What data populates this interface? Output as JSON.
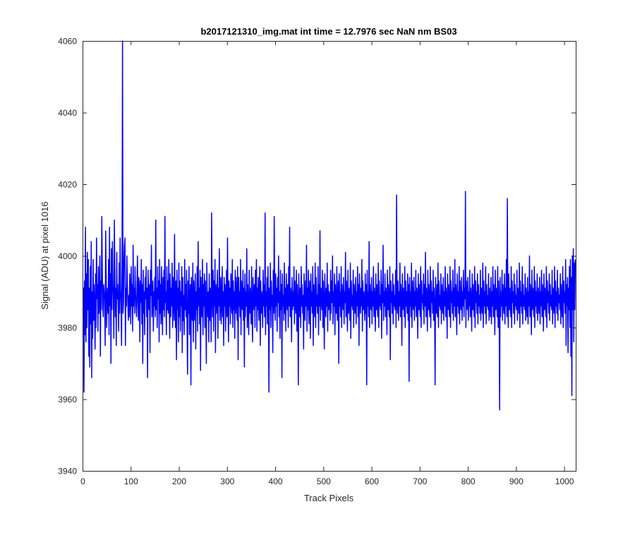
{
  "chart_data": {
    "type": "line",
    "title": "b2017121310_img.mat int time = 12.7976 sec  NaN nm BS03",
    "xlabel": "Track Pixels",
    "ylabel": "Signal (ADU) at pixel 1016",
    "xlim": [
      0,
      1024
    ],
    "ylim": [
      3940,
      4060
    ],
    "xticks": [
      0,
      100,
      200,
      300,
      400,
      500,
      600,
      700,
      800,
      900,
      1000
    ],
    "yticks": [
      3940,
      3960,
      3980,
      4000,
      4020,
      4040,
      4060
    ],
    "grid": false,
    "legend": "none",
    "series": [
      {
        "color": "#0000ff",
        "x_start": 1,
        "x_step": 1,
        "values": [
          3985,
          3991,
          3962,
          3993,
          3978,
          4008,
          3976,
          3995,
          3980,
          4001,
          3985,
          3999,
          3972,
          3991,
          3969,
          3997,
          3981,
          4004,
          3966,
          3990,
          3977,
          3999,
          3982,
          3992,
          3986,
          3974,
          3995,
          3980,
          4005,
          3988,
          3992,
          3979,
          3997,
          3984,
          3989,
          4000,
          3972,
          3993,
          3985,
          4011,
          3996,
          3986,
          3983,
          3992,
          3990,
          3988,
          3975,
          4007,
          3995,
          3980,
          3988,
          3991,
          3984,
          3999,
          3978,
          4008,
          3986,
          3995,
          3970,
          4002,
          3985,
          4004,
          3992,
          3988,
          3977,
          4010,
          3996,
          3983,
          3991,
          3975,
          4001,
          3988,
          3992,
          3986,
          3979,
          3998,
          3984,
          4005,
          3991,
          3986,
          3975,
          3998,
          4060,
          3984,
          3987,
          3999,
          4003,
          4005,
          3975,
          3991,
          3986,
          4000,
          3992,
          3987,
          3982,
          3989,
          3983,
          3995,
          3990,
          3981,
          3997,
          3986,
          3992,
          3979,
          4003,
          3986,
          3991,
          3984,
          3997,
          3990,
          3986,
          3983,
          3991,
          4000,
          3987,
          3982,
          3994,
          3990,
          3976,
          3993,
          3987,
          3999,
          3981,
          3992,
          3970,
          3996,
          3984,
          3990,
          3978,
          3994,
          3988,
          3997,
          3983,
          3991,
          3966,
          3996,
          3989,
          3985,
          3992,
          3973,
          3996,
          3989,
          4003,
          3983,
          3987,
          3993,
          3979,
          3990,
          3986,
          3994,
          3983,
          4010,
          3985,
          3991,
          3980,
          3997,
          3988,
          3993,
          3976,
          3999,
          3984,
          3992,
          3981,
          3997,
          3988,
          3978,
          3994,
          3985,
          3996,
          3983,
          4011,
          3987,
          3990,
          3978,
          3997,
          3985,
          3993,
          3984,
          3999,
          3988,
          3977,
          3995,
          3983,
          3991,
          3986,
          3998,
          3980,
          3994,
          3989,
          3982,
          4006,
          3987,
          3980,
          3993,
          3971,
          3996,
          3985,
          3991,
          3976,
          3998,
          3983,
          3993,
          3979,
          3990,
          3986,
          3997,
          3973,
          3994,
          3982,
          3989,
          3978,
          3999,
          3985,
          3992,
          3983,
          3996,
          3980,
          3967,
          3993,
          3984,
          3997,
          3978,
          3987,
          3992,
          3964,
          3994,
          3986,
          3982,
          3998,
          3976,
          3993,
          3982,
          3986,
          3995,
          3974,
          3990,
          3985,
          3997,
          3979,
          4004,
          3986,
          3991,
          3981,
          3996,
          3968,
          3994,
          3987,
          3983,
          3999,
          3978,
          3992,
          3986,
          3995,
          3980,
          3993,
          3984,
          3970,
          3998,
          3987,
          3983,
          3990,
          3976,
          3995,
          3982,
          3991,
          3987,
          3976,
          4012,
          3990,
          3983,
          3996,
          3979,
          3993,
          3986,
          3999,
          3973,
          3992,
          3984,
          3988,
          3996,
          3977,
          3991,
          3986,
          4002,
          3982,
          3989,
          3994,
          3981,
          3987,
          3997,
          3983,
          3990,
          3975,
          3994,
          3986,
          3992,
          3979,
          3988,
          3996,
          3983,
          4005,
          3987,
          3976,
          3993,
          3986,
          3991,
          3981,
          3995,
          3988,
          3984,
          3999,
          3980,
          3993,
          3985,
          3990,
          3977,
          3996,
          3984,
          3994,
          3988,
          3982,
          3997,
          3971,
          3994,
          3986,
          3990,
          3983,
          3999,
          3978,
          3993,
          3987,
          3985,
          3996,
          3982,
          3991,
          3969,
          3995,
          3983,
          3990,
          3986,
          4002,
          3980,
          3992,
          3987,
          3978,
          3996,
          3984,
          3991,
          3988,
          3981,
          3997,
          3983,
          3976,
          3994,
          3989,
          3985,
          3992,
          3980,
          3996,
          3986,
          3999,
          3979,
          3991,
          3985,
          3994,
          3982,
          3988,
          3997,
          3975,
          3993,
          3984,
          3990,
          3987,
          3980,
          3996,
          3986,
          3992,
          3983,
          4012,
          3978,
          3990,
          3986,
          3994,
          3981,
          3997,
          3987,
          3962,
          3991,
          3985,
          3998,
          3980,
          3993,
          3986,
          3989,
          3973,
          3996,
          3984,
          4011,
          3988,
          3982,
          3995,
          3986,
          3991,
          3979,
          3994,
          3987,
          4000,
          3983,
          3990,
          3977,
          3996,
          3985,
          3992,
          3966,
          3995,
          3986,
          3989,
          3982,
          3998,
          3984,
          3991,
          3979,
          3995,
          3988,
          3985,
          3992,
          3980,
          3997,
          3986,
          4008,
          3983,
          3991,
          3989,
          3976,
          3994,
          3985,
          3990,
          3986,
          3997,
          3981,
          3993,
          3987,
          3984,
          3996,
          3979,
          3992,
          3986,
          3964,
          3995,
          3988,
          3983,
          3991,
          3980,
          3997,
          3986,
          3992,
          3984,
          3989,
          3974,
          3995,
          3987,
          3982,
          3993,
          3986,
          4003,
          3979,
          3991,
          3985,
          3996,
          3981,
          3988,
          3993,
          3977,
          3995,
          3986,
          3990,
          3984,
          3997,
          3975,
          3992,
          3987,
          3983,
          3998,
          3980,
          3994,
          3986,
          3989,
          3984,
          3997,
          3978,
          3992,
          3986,
          4007,
          3982,
          3991,
          3988,
          3985,
          3996,
          3980,
          3993,
          3986,
          3974,
          3995,
          3987,
          3983,
          3991,
          3986,
          3998,
          3979,
          3992,
          3985,
          3990,
          3987,
          3982,
          3996,
          3984,
          3993,
          3987,
          4000,
          3981,
          3990,
          3986,
          3995,
          3978,
          3992,
          3987,
          3984,
          3997,
          3982,
          3989,
          3993,
          3970,
          3995,
          3986,
          3990,
          3983,
          3997,
          3980,
          3992,
          3988,
          3985,
          3994,
          3981,
          3990,
          3987,
          4001,
          3983,
          3993,
          3986,
          3979,
          3996,
          3984,
          3991,
          3987,
          3982,
          3998,
          3977,
          3993,
          3986,
          3989,
          3985,
          3996,
          3980,
          3992,
          3987,
          3984,
          3994,
          3981,
          3990,
          3986,
          3997,
          3983,
          3992,
          3975,
          3995,
          3988,
          3984,
          3991,
          3986,
          3999,
          3979,
          3993,
          3985,
          3990,
          3987,
          3982,
          3995,
          3984,
          3992,
          3964,
          3996,
          3986,
          3990,
          3983,
          4004,
          3980,
          3992,
          3987,
          3985,
          3994,
          3981,
          3990,
          3986,
          3997,
          3983,
          3991,
          3988,
          3979,
          3995,
          3985,
          3992,
          3986,
          3983,
          3998,
          3980,
          3993,
          3986,
          3989,
          3985,
          3996,
          3977,
          3992,
          3987,
          4003,
          3982,
          3990,
          3986,
          3995,
          3983,
          3991,
          3988,
          3978,
          3996,
          3985,
          3992,
          3986,
          3983,
          3997,
          3971,
          3993,
          3987,
          3990,
          3984,
          3995,
          3981,
          3992,
          3986,
          3989,
          3985,
          3996,
          3980,
          4017,
          3987,
          3984,
          3993,
          3982,
          3990,
          3986,
          3998,
          3983,
          3992,
          3988,
          3975,
          3995,
          3985,
          3991,
          3987,
          3983,
          3997,
          3980,
          3993,
          3986,
          3990,
          3984,
          3995,
          3982,
          3992,
          3965,
          3994,
          3986,
          3990,
          3983,
          3998,
          3980,
          3993,
          3987,
          3985,
          3994,
          3982,
          3990,
          3986,
          3996,
          3983,
          3991,
          3988,
          3977,
          3995,
          3985,
          3992,
          3986,
          3983,
          3997,
          3980,
          3993,
          3987,
          3989,
          3985,
          3995,
          3981,
          3992,
          3986,
          4001,
          3983,
          3991,
          3988,
          3979,
          3996,
          3985,
          3992,
          3986,
          3983,
          3997,
          3980,
          3993,
          3987,
          3990,
          3984,
          3996,
          3982,
          3991,
          3986,
          3964,
          3994,
          3987,
          3984,
          3992,
          3983,
          3998,
          3980,
          3993,
          3986,
          3989,
          3985,
          3995,
          3981,
          3992,
          3987,
          3984,
          3994,
          3982,
          3990,
          3986,
          3997,
          3983,
          3991,
          3988,
          3977,
          3995,
          3985,
          3992,
          3986,
          3983,
          3997,
          3980,
          3993,
          3987,
          3990,
          3984,
          3996,
          3982,
          3991,
          3986,
          3999,
          3983,
          3992,
          3988,
          3978,
          3995,
          3986,
          3990,
          3984,
          3997,
          3981,
          3993,
          3987,
          3985,
          3994,
          3982,
          3990,
          3986,
          3996,
          3983,
          3991,
          3988,
          4018,
          3980,
          3993,
          3987,
          3985,
          3994,
          3982,
          3990,
          3986,
          3996,
          3983,
          3991,
          3988,
          3979,
          3995,
          3985,
          3992,
          3986,
          3983,
          3997,
          3980,
          3993,
          3987,
          3990,
          3984,
          3995,
          3981,
          3992,
          3986,
          3989,
          3984,
          3996,
          3982,
          3991,
          3987,
          3984,
          3998,
          3980,
          3993,
          3986,
          3990,
          3984,
          3997,
          3981,
          3992,
          3986,
          3989,
          3985,
          3995,
          3982,
          3991,
          3987,
          3983,
          3994,
          3981,
          3990,
          3986,
          3997,
          3983,
          3992,
          3988,
          3978,
          3996,
          3985,
          3991,
          3987,
          3983,
          3997,
          3980,
          3993,
          3986,
          3957,
          3994,
          3983,
          3990,
          3986,
          3996,
          3982,
          3992,
          3987,
          3984,
          3995,
          3981,
          3991,
          3986,
          3999,
          3983,
          4016,
          3987,
          3980,
          3995,
          3985,
          3991,
          3986,
          3983,
          3997,
          3980,
          3993,
          3987,
          3990,
          3984,
          3995,
          3981,
          3992,
          3986,
          3989,
          3985,
          3996,
          3982,
          3991,
          3987,
          3984,
          3998,
          3980,
          3993,
          3986,
          3990,
          3984,
          3997,
          3981,
          3992,
          3986,
          3989,
          3985,
          3995,
          3982,
          3991,
          3987,
          3983,
          3994,
          3981,
          3990,
          3986,
          4000,
          3983,
          3992,
          3988,
          3978,
          3996,
          3985,
          3991,
          3987,
          3983,
          3997,
          3980,
          3993,
          3986,
          3990,
          3984,
          3995,
          3982,
          3991,
          3987,
          3984,
          3994,
          3981,
          3990,
          3986,
          3996,
          3983,
          3992,
          3988,
          3979,
          3995,
          3985,
          3991,
          3986,
          3983,
          3997,
          3980,
          3993,
          3987,
          3990,
          3984,
          3995,
          3982,
          3992,
          3986,
          3989,
          3985,
          3996,
          3981,
          3991,
          3987,
          3984,
          3997,
          3980,
          3993,
          3986,
          3990,
          3984,
          3996,
          3982,
          3991,
          3987,
          3989,
          3985,
          3995,
          3981,
          3992,
          3986,
          3983,
          3997,
          3980,
          3993,
          3987,
          3990,
          3984,
          3999,
          3975,
          3992,
          3986,
          3994,
          3973,
          3991,
          3985,
          3997,
          3980,
          3999,
          3972,
          3994,
          3961,
          4000,
          3985,
          4002,
          3976,
          3998,
          3985,
          3999
        ]
      }
    ]
  }
}
